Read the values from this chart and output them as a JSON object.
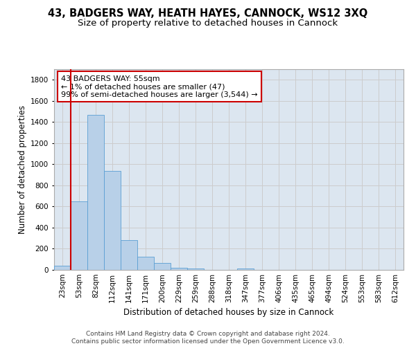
{
  "title": "43, BADGERS WAY, HEATH HAYES, CANNOCK, WS12 3XQ",
  "subtitle": "Size of property relative to detached houses in Cannock",
  "xlabel": "Distribution of detached houses by size in Cannock",
  "ylabel": "Number of detached properties",
  "categories": [
    "23sqm",
    "53sqm",
    "82sqm",
    "112sqm",
    "141sqm",
    "171sqm",
    "200sqm",
    "229sqm",
    "259sqm",
    "288sqm",
    "318sqm",
    "347sqm",
    "377sqm",
    "406sqm",
    "435sqm",
    "465sqm",
    "494sqm",
    "524sqm",
    "553sqm",
    "583sqm",
    "612sqm"
  ],
  "values": [
    40,
    650,
    1470,
    940,
    285,
    125,
    65,
    22,
    12,
    0,
    0,
    15,
    0,
    0,
    0,
    0,
    0,
    0,
    0,
    0,
    0
  ],
  "bar_color": "#b8d0e8",
  "bar_edge_color": "#5a9fd4",
  "highlight_bar_index": 1,
  "highlight_color": "#cc0000",
  "annotation_text": "43 BADGERS WAY: 55sqm\n← 1% of detached houses are smaller (47)\n99% of semi-detached houses are larger (3,544) →",
  "annotation_box_color": "#ffffff",
  "annotation_box_edge": "#cc0000",
  "ylim": [
    0,
    1900
  ],
  "yticks": [
    0,
    200,
    400,
    600,
    800,
    1000,
    1200,
    1400,
    1600,
    1800
  ],
  "footer": "Contains HM Land Registry data © Crown copyright and database right 2024.\nContains public sector information licensed under the Open Government Licence v3.0.",
  "grid_color": "#cccccc",
  "background_color": "#dce6f0",
  "title_fontsize": 10.5,
  "subtitle_fontsize": 9.5,
  "axis_label_fontsize": 8.5,
  "tick_fontsize": 7.5,
  "annotation_fontsize": 8,
  "footer_fontsize": 6.5
}
